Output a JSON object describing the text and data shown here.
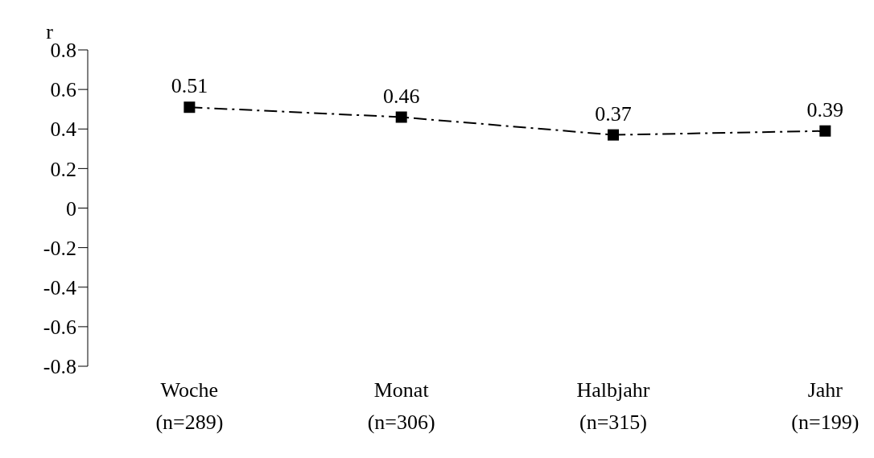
{
  "chart_data": {
    "type": "line",
    "ylabel": "r",
    "categories": [
      "Woche\n(n=289)",
      "Monat\n(n=306)",
      "Halbjahr\n(n=315)",
      "Jahr\n(n=199)"
    ],
    "series": [
      {
        "color": "#000000",
        "values": [
          0.51,
          0.46,
          0.37,
          0.39
        ]
      }
    ],
    "ylim": [
      -0.8,
      0.8
    ],
    "yticks": [
      -0.8,
      -0.6,
      -0.4,
      -0.2,
      0,
      0.2,
      0.4,
      0.6,
      0.8
    ],
    "grid": false,
    "marker": "square",
    "line_style": "dashed",
    "data_labels": true
  }
}
